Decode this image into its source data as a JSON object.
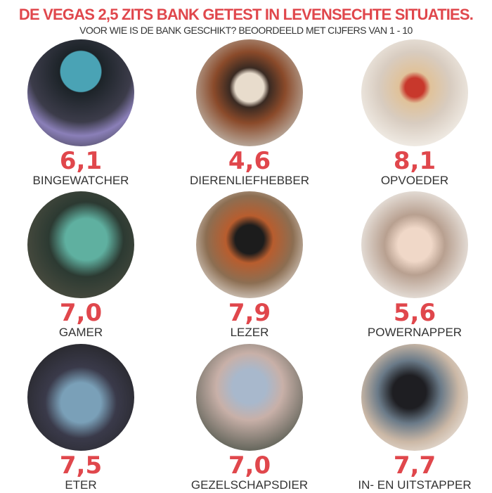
{
  "title": "DE VEGAS 2,5 ZITS BANK GETEST IN LEVENSECHTE SITUATIES.",
  "subtitle": "VOOR WIE IS DE BANK GESCHIKT? BEOORDEELD MET CIJFERS VAN 1 - 10",
  "accent_color": "#e0474c",
  "items": [
    {
      "score": "6,1",
      "label": "BINGEWATCHER",
      "photo": "couple-watching-tv"
    },
    {
      "score": "4,6",
      "label": "DIERENLIEFHEBBER",
      "photo": "woman-with-dog-on-sofa"
    },
    {
      "score": "8,1",
      "label": "OPVOEDER",
      "photo": "kids-jumping-on-sofa"
    },
    {
      "score": "7,0",
      "label": "GAMER",
      "photo": "man-gaming-with-headset"
    },
    {
      "score": "7,9",
      "label": "LEZER",
      "photo": "man-reading-book"
    },
    {
      "score": "5,6",
      "label": "POWERNAPPER",
      "photo": "woman-napping"
    },
    {
      "score": "7,5",
      "label": "ETER",
      "photo": "man-eating-on-sofa"
    },
    {
      "score": "7,0",
      "label": "GEZELSCHAPSDIER",
      "photo": "friends-socializing"
    },
    {
      "score": "7,7",
      "label": "IN- EN UITSTAPPER",
      "photo": "man-getting-up-from-sofa"
    }
  ]
}
